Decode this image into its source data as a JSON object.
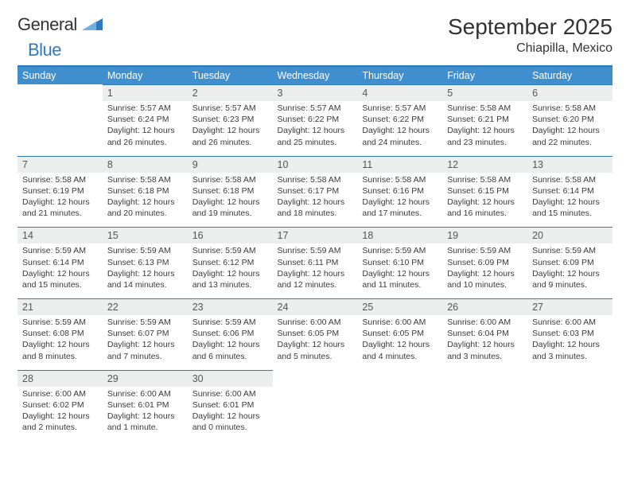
{
  "brand": {
    "word1": "General",
    "word2": "Blue",
    "color": "#2f7abf"
  },
  "title": "September 2025",
  "location": "Chiapilla, Mexico",
  "day_headers": [
    "Sunday",
    "Monday",
    "Tuesday",
    "Wednesday",
    "Thursday",
    "Friday",
    "Saturday"
  ],
  "colors": {
    "header_bg": "#3f8fcf",
    "header_text": "#ffffff",
    "rule": "#2f7abf",
    "daynum_bg": "#eceded",
    "text": "#3a3a3a"
  },
  "weeks": [
    [
      null,
      {
        "n": "1",
        "sunrise": "Sunrise: 5:57 AM",
        "sunset": "Sunset: 6:24 PM",
        "daylight": "Daylight: 12 hours and 26 minutes."
      },
      {
        "n": "2",
        "sunrise": "Sunrise: 5:57 AM",
        "sunset": "Sunset: 6:23 PM",
        "daylight": "Daylight: 12 hours and 26 minutes."
      },
      {
        "n": "3",
        "sunrise": "Sunrise: 5:57 AM",
        "sunset": "Sunset: 6:22 PM",
        "daylight": "Daylight: 12 hours and 25 minutes."
      },
      {
        "n": "4",
        "sunrise": "Sunrise: 5:57 AM",
        "sunset": "Sunset: 6:22 PM",
        "daylight": "Daylight: 12 hours and 24 minutes."
      },
      {
        "n": "5",
        "sunrise": "Sunrise: 5:58 AM",
        "sunset": "Sunset: 6:21 PM",
        "daylight": "Daylight: 12 hours and 23 minutes."
      },
      {
        "n": "6",
        "sunrise": "Sunrise: 5:58 AM",
        "sunset": "Sunset: 6:20 PM",
        "daylight": "Daylight: 12 hours and 22 minutes."
      }
    ],
    [
      {
        "n": "7",
        "sunrise": "Sunrise: 5:58 AM",
        "sunset": "Sunset: 6:19 PM",
        "daylight": "Daylight: 12 hours and 21 minutes."
      },
      {
        "n": "8",
        "sunrise": "Sunrise: 5:58 AM",
        "sunset": "Sunset: 6:18 PM",
        "daylight": "Daylight: 12 hours and 20 minutes."
      },
      {
        "n": "9",
        "sunrise": "Sunrise: 5:58 AM",
        "sunset": "Sunset: 6:18 PM",
        "daylight": "Daylight: 12 hours and 19 minutes."
      },
      {
        "n": "10",
        "sunrise": "Sunrise: 5:58 AM",
        "sunset": "Sunset: 6:17 PM",
        "daylight": "Daylight: 12 hours and 18 minutes."
      },
      {
        "n": "11",
        "sunrise": "Sunrise: 5:58 AM",
        "sunset": "Sunset: 6:16 PM",
        "daylight": "Daylight: 12 hours and 17 minutes."
      },
      {
        "n": "12",
        "sunrise": "Sunrise: 5:58 AM",
        "sunset": "Sunset: 6:15 PM",
        "daylight": "Daylight: 12 hours and 16 minutes."
      },
      {
        "n": "13",
        "sunrise": "Sunrise: 5:58 AM",
        "sunset": "Sunset: 6:14 PM",
        "daylight": "Daylight: 12 hours and 15 minutes."
      }
    ],
    [
      {
        "n": "14",
        "sunrise": "Sunrise: 5:59 AM",
        "sunset": "Sunset: 6:14 PM",
        "daylight": "Daylight: 12 hours and 15 minutes."
      },
      {
        "n": "15",
        "sunrise": "Sunrise: 5:59 AM",
        "sunset": "Sunset: 6:13 PM",
        "daylight": "Daylight: 12 hours and 14 minutes."
      },
      {
        "n": "16",
        "sunrise": "Sunrise: 5:59 AM",
        "sunset": "Sunset: 6:12 PM",
        "daylight": "Daylight: 12 hours and 13 minutes."
      },
      {
        "n": "17",
        "sunrise": "Sunrise: 5:59 AM",
        "sunset": "Sunset: 6:11 PM",
        "daylight": "Daylight: 12 hours and 12 minutes."
      },
      {
        "n": "18",
        "sunrise": "Sunrise: 5:59 AM",
        "sunset": "Sunset: 6:10 PM",
        "daylight": "Daylight: 12 hours and 11 minutes."
      },
      {
        "n": "19",
        "sunrise": "Sunrise: 5:59 AM",
        "sunset": "Sunset: 6:09 PM",
        "daylight": "Daylight: 12 hours and 10 minutes."
      },
      {
        "n": "20",
        "sunrise": "Sunrise: 5:59 AM",
        "sunset": "Sunset: 6:09 PM",
        "daylight": "Daylight: 12 hours and 9 minutes."
      }
    ],
    [
      {
        "n": "21",
        "sunrise": "Sunrise: 5:59 AM",
        "sunset": "Sunset: 6:08 PM",
        "daylight": "Daylight: 12 hours and 8 minutes."
      },
      {
        "n": "22",
        "sunrise": "Sunrise: 5:59 AM",
        "sunset": "Sunset: 6:07 PM",
        "daylight": "Daylight: 12 hours and 7 minutes."
      },
      {
        "n": "23",
        "sunrise": "Sunrise: 5:59 AM",
        "sunset": "Sunset: 6:06 PM",
        "daylight": "Daylight: 12 hours and 6 minutes."
      },
      {
        "n": "24",
        "sunrise": "Sunrise: 6:00 AM",
        "sunset": "Sunset: 6:05 PM",
        "daylight": "Daylight: 12 hours and 5 minutes."
      },
      {
        "n": "25",
        "sunrise": "Sunrise: 6:00 AM",
        "sunset": "Sunset: 6:05 PM",
        "daylight": "Daylight: 12 hours and 4 minutes."
      },
      {
        "n": "26",
        "sunrise": "Sunrise: 6:00 AM",
        "sunset": "Sunset: 6:04 PM",
        "daylight": "Daylight: 12 hours and 3 minutes."
      },
      {
        "n": "27",
        "sunrise": "Sunrise: 6:00 AM",
        "sunset": "Sunset: 6:03 PM",
        "daylight": "Daylight: 12 hours and 3 minutes."
      }
    ],
    [
      {
        "n": "28",
        "sunrise": "Sunrise: 6:00 AM",
        "sunset": "Sunset: 6:02 PM",
        "daylight": "Daylight: 12 hours and 2 minutes."
      },
      {
        "n": "29",
        "sunrise": "Sunrise: 6:00 AM",
        "sunset": "Sunset: 6:01 PM",
        "daylight": "Daylight: 12 hours and 1 minute."
      },
      {
        "n": "30",
        "sunrise": "Sunrise: 6:00 AM",
        "sunset": "Sunset: 6:01 PM",
        "daylight": "Daylight: 12 hours and 0 minutes."
      },
      null,
      null,
      null,
      null
    ]
  ]
}
